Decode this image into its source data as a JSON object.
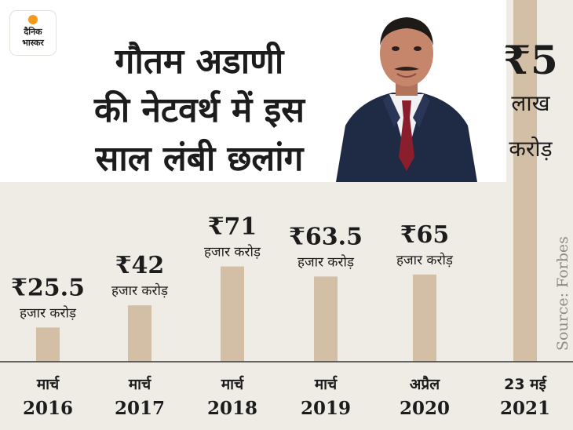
{
  "brand": {
    "line1": "दैनिक",
    "line2": "भास्कर"
  },
  "headline": [
    "गौतम अडाणी",
    "की नेटवर्थ में इस",
    "साल लंबी छलांग"
  ],
  "source": "Source: Forbes",
  "colors": {
    "bar": "#d2bfa5",
    "background": "#efebe5",
    "panel": "#ffffff",
    "text": "#1c1c1c",
    "baseline": "#3a3a3a"
  },
  "chart_data": {
    "type": "bar",
    "title": "गौतम अडाणी की नेटवर्थ में इस साल लंबी छलांग",
    "categories": [
      {
        "month": "मार्च",
        "year": "2016"
      },
      {
        "month": "मार्च",
        "year": "2017"
      },
      {
        "month": "मार्च",
        "year": "2018"
      },
      {
        "month": "मार्च",
        "year": "2019"
      },
      {
        "month": "अप्रैल",
        "year": "2020"
      },
      {
        "month": "23 मई",
        "year": "2021"
      }
    ],
    "values": [
      25.5,
      42,
      71,
      63.5,
      65,
      500
    ],
    "unit": "हजार करोड़",
    "value_labels": [
      {
        "amount": "₹25.5",
        "unit": "हजार करोड़"
      },
      {
        "amount": "₹42",
        "unit": "हजार करोड़"
      },
      {
        "amount": "₹71",
        "unit": "हजार करोड़"
      },
      {
        "amount": "₹63.5",
        "unit": "हजार करोड़"
      },
      {
        "amount": "₹65",
        "unit": "हजार करोड़"
      },
      {
        "amount": "₹5",
        "unit_lines": [
          "लाख",
          "करोड़"
        ]
      }
    ],
    "axis_break": true
  }
}
